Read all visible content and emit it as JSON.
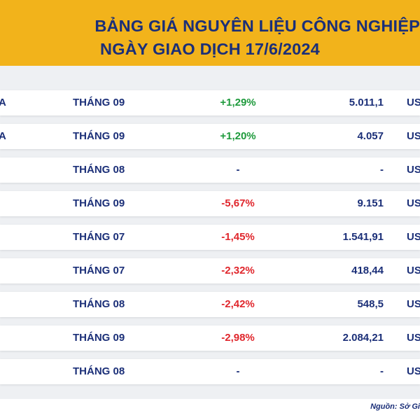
{
  "header": {
    "title_line1": "BẢNG GIÁ NGUYÊN LIỆU CÔNG NGHIỆP",
    "title_line2": "NGÀY GIAO DỊCH 17/6/2024"
  },
  "colors": {
    "header_bg": "#f2b31b",
    "title_text": "#1b2f78",
    "positive": "#1e9a3c",
    "negative": "#e0262c"
  },
  "rows": [
    {
      "name": "A",
      "month": "THÁNG 09",
      "change": "+1,29%",
      "trend": "pos",
      "price": "5.011,1",
      "unit": "US"
    },
    {
      "name": "A",
      "month": "THÁNG 09",
      "change": "+1,20%",
      "trend": "pos",
      "price": "4.057",
      "unit": "US"
    },
    {
      "name": "",
      "month": "THÁNG 08",
      "change": "-",
      "trend": "flat",
      "price": "-",
      "unit": "US"
    },
    {
      "name": "",
      "month": "THÁNG 09",
      "change": "-5,67%",
      "trend": "neg",
      "price": "9.151",
      "unit": "US"
    },
    {
      "name": "",
      "month": "THÁNG 07",
      "change": "-1,45%",
      "trend": "neg",
      "price": "1.541,91",
      "unit": "US"
    },
    {
      "name": "",
      "month": "THÁNG 07",
      "change": "-2,32%",
      "trend": "neg",
      "price": "418,44",
      "unit": "US"
    },
    {
      "name": "",
      "month": "THÁNG 08",
      "change": "-2,42%",
      "trend": "neg",
      "price": "548,5",
      "unit": "US"
    },
    {
      "name": "",
      "month": "THÁNG 09",
      "change": "-2,98%",
      "trend": "neg",
      "price": "2.084,21",
      "unit": "US"
    },
    {
      "name": "",
      "month": "THÁNG 08",
      "change": "-",
      "trend": "flat",
      "price": "-",
      "unit": "US"
    }
  ],
  "footer": {
    "source": "Nguồn: Sở Gi"
  }
}
